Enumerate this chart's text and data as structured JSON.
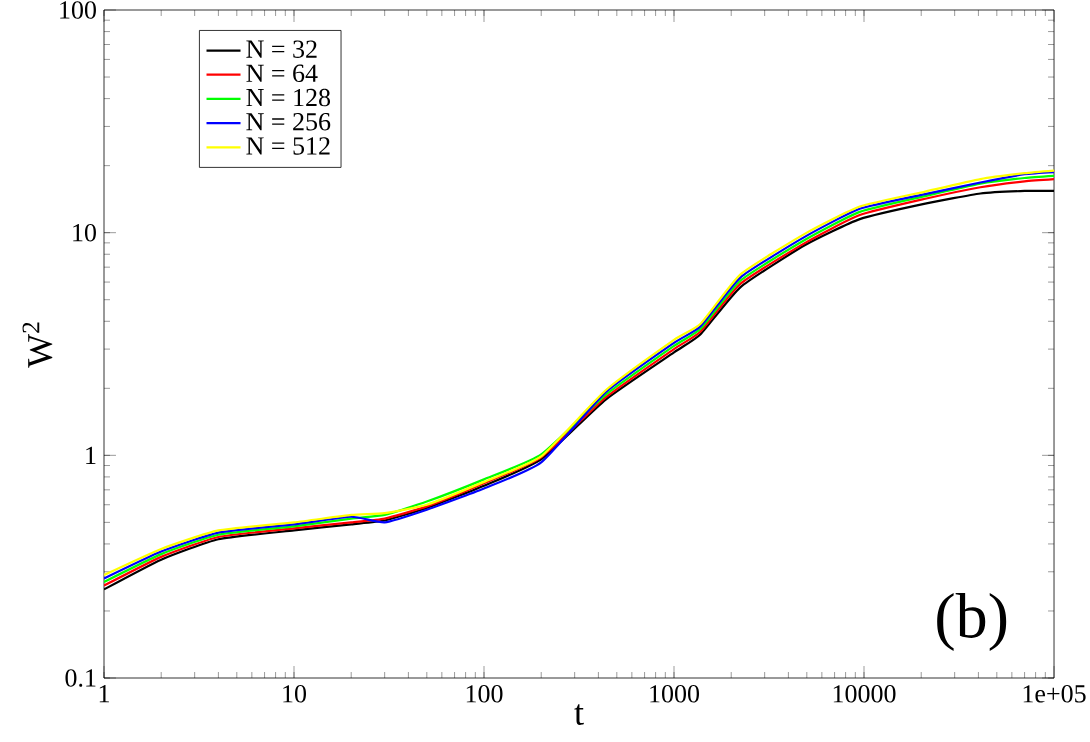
{
  "chart_data": {
    "type": "line",
    "xlabel": "t",
    "ylabel": "W$^{2}$",
    "x": [
      1,
      2,
      4,
      10,
      20,
      30,
      50,
      100,
      200,
      437,
      1000,
      1380,
      2240,
      4900,
      9500,
      21000,
      41000,
      70000,
      100000
    ],
    "series": [
      {
        "name": "N = 32",
        "color": "#000000",
        "values": [
          0.25,
          0.34,
          0.42,
          0.46,
          0.49,
          0.51,
          0.58,
          0.73,
          0.96,
          1.78,
          2.9,
          3.5,
          5.7,
          8.8,
          11.5,
          13.5,
          15,
          15.4,
          15.4
        ]
      },
      {
        "name": "N = 64",
        "color": "#ff0000",
        "values": [
          0.26,
          0.35,
          0.43,
          0.47,
          0.5,
          0.52,
          0.59,
          0.75,
          0.98,
          1.82,
          3.0,
          3.6,
          5.9,
          9.0,
          12,
          14.2,
          16,
          17,
          17.4
        ]
      },
      {
        "name": "N = 128",
        "color": "#00ff00",
        "values": [
          0.27,
          0.36,
          0.44,
          0.48,
          0.52,
          0.54,
          0.62,
          0.78,
          1.01,
          1.87,
          3.1,
          3.7,
          6.1,
          9.3,
          12.4,
          14.6,
          16.6,
          17.6,
          18
        ]
      },
      {
        "name": "N = 256",
        "color": "#0000ff",
        "values": [
          0.28,
          0.37,
          0.45,
          0.49,
          0.53,
          0.5,
          0.57,
          0.71,
          0.93,
          1.92,
          3.2,
          3.8,
          6.3,
          9.6,
          12.8,
          14.9,
          16.8,
          18.3,
          18.7
        ]
      },
      {
        "name": "N = 512",
        "color": "#ffff00",
        "values": [
          0.29,
          0.38,
          0.46,
          0.5,
          0.54,
          0.55,
          0.6,
          0.76,
          0.99,
          1.96,
          3.3,
          3.9,
          6.5,
          9.9,
          13.1,
          15.3,
          17.4,
          18.5,
          19
        ]
      }
    ],
    "xlim": [
      1,
      100000
    ],
    "ylim": [
      0.1,
      100
    ],
    "xticks": [
      1,
      10,
      100,
      1000,
      10000,
      {
        "value": 100000,
        "label": "1e+05"
      }
    ],
    "yticks": [
      0.1,
      1,
      10,
      100
    ],
    "log": "xy",
    "legend": "top left",
    "annotations": [
      "(b)"
    ]
  }
}
